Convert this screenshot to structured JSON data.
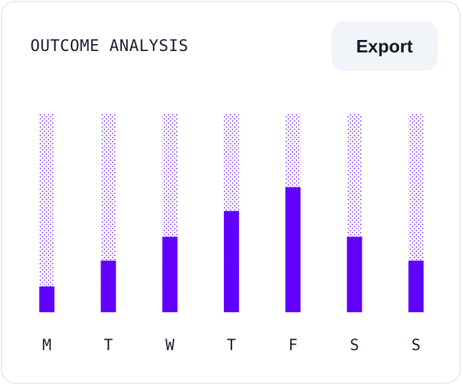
{
  "header": {
    "title": "OUTCOME ANALYSIS",
    "export_label": "Export"
  },
  "colors": {
    "bar": "#6200ff",
    "dots": "#6200ff",
    "card_border": "#e6ecf2",
    "button_bg": "#f1f4f8"
  },
  "chart_data": {
    "type": "bar",
    "title": "OUTCOME ANALYSIS",
    "categories": [
      "M",
      "T",
      "W",
      "T",
      "F",
      "S",
      "S"
    ],
    "values": [
      13,
      26,
      38,
      51,
      63,
      38,
      26
    ],
    "ylim": [
      0,
      100
    ],
    "xlabel": "",
    "ylabel": "",
    "grid": false
  }
}
